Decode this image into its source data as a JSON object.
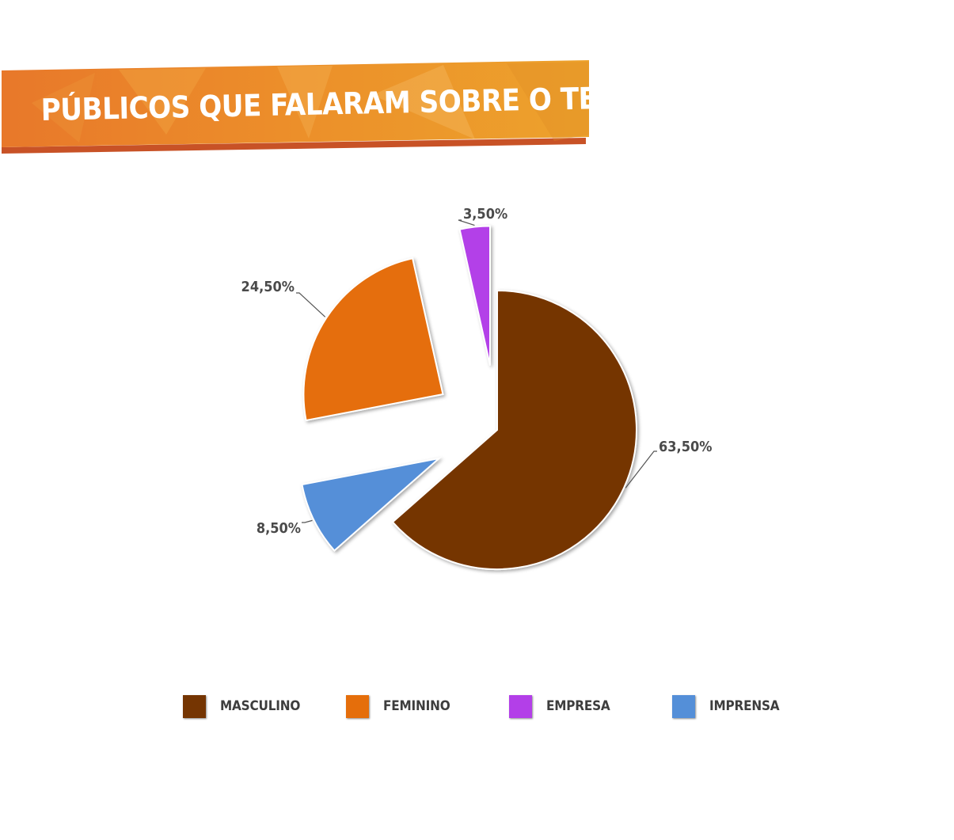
{
  "title": "PÚBLICOS QUE FALARAM SOBRE O TEMA",
  "chart_data": {
    "type": "pie",
    "title": "PÚBLICOS QUE FALARAM SOBRE O TEMA",
    "categories": [
      "MASCULINO",
      "FEMININO",
      "EMPRESA",
      "IMPRENSA"
    ],
    "values": [
      63.5,
      24.5,
      3.5,
      8.5
    ],
    "data_labels": [
      "63,50%",
      "24,50%",
      "3,50%",
      "8,50%"
    ],
    "colors": [
      "#753502",
      "#e56e0b",
      "#b33fe8",
      "#548fd8"
    ],
    "exploded": true,
    "legend_position": "bottom"
  }
}
